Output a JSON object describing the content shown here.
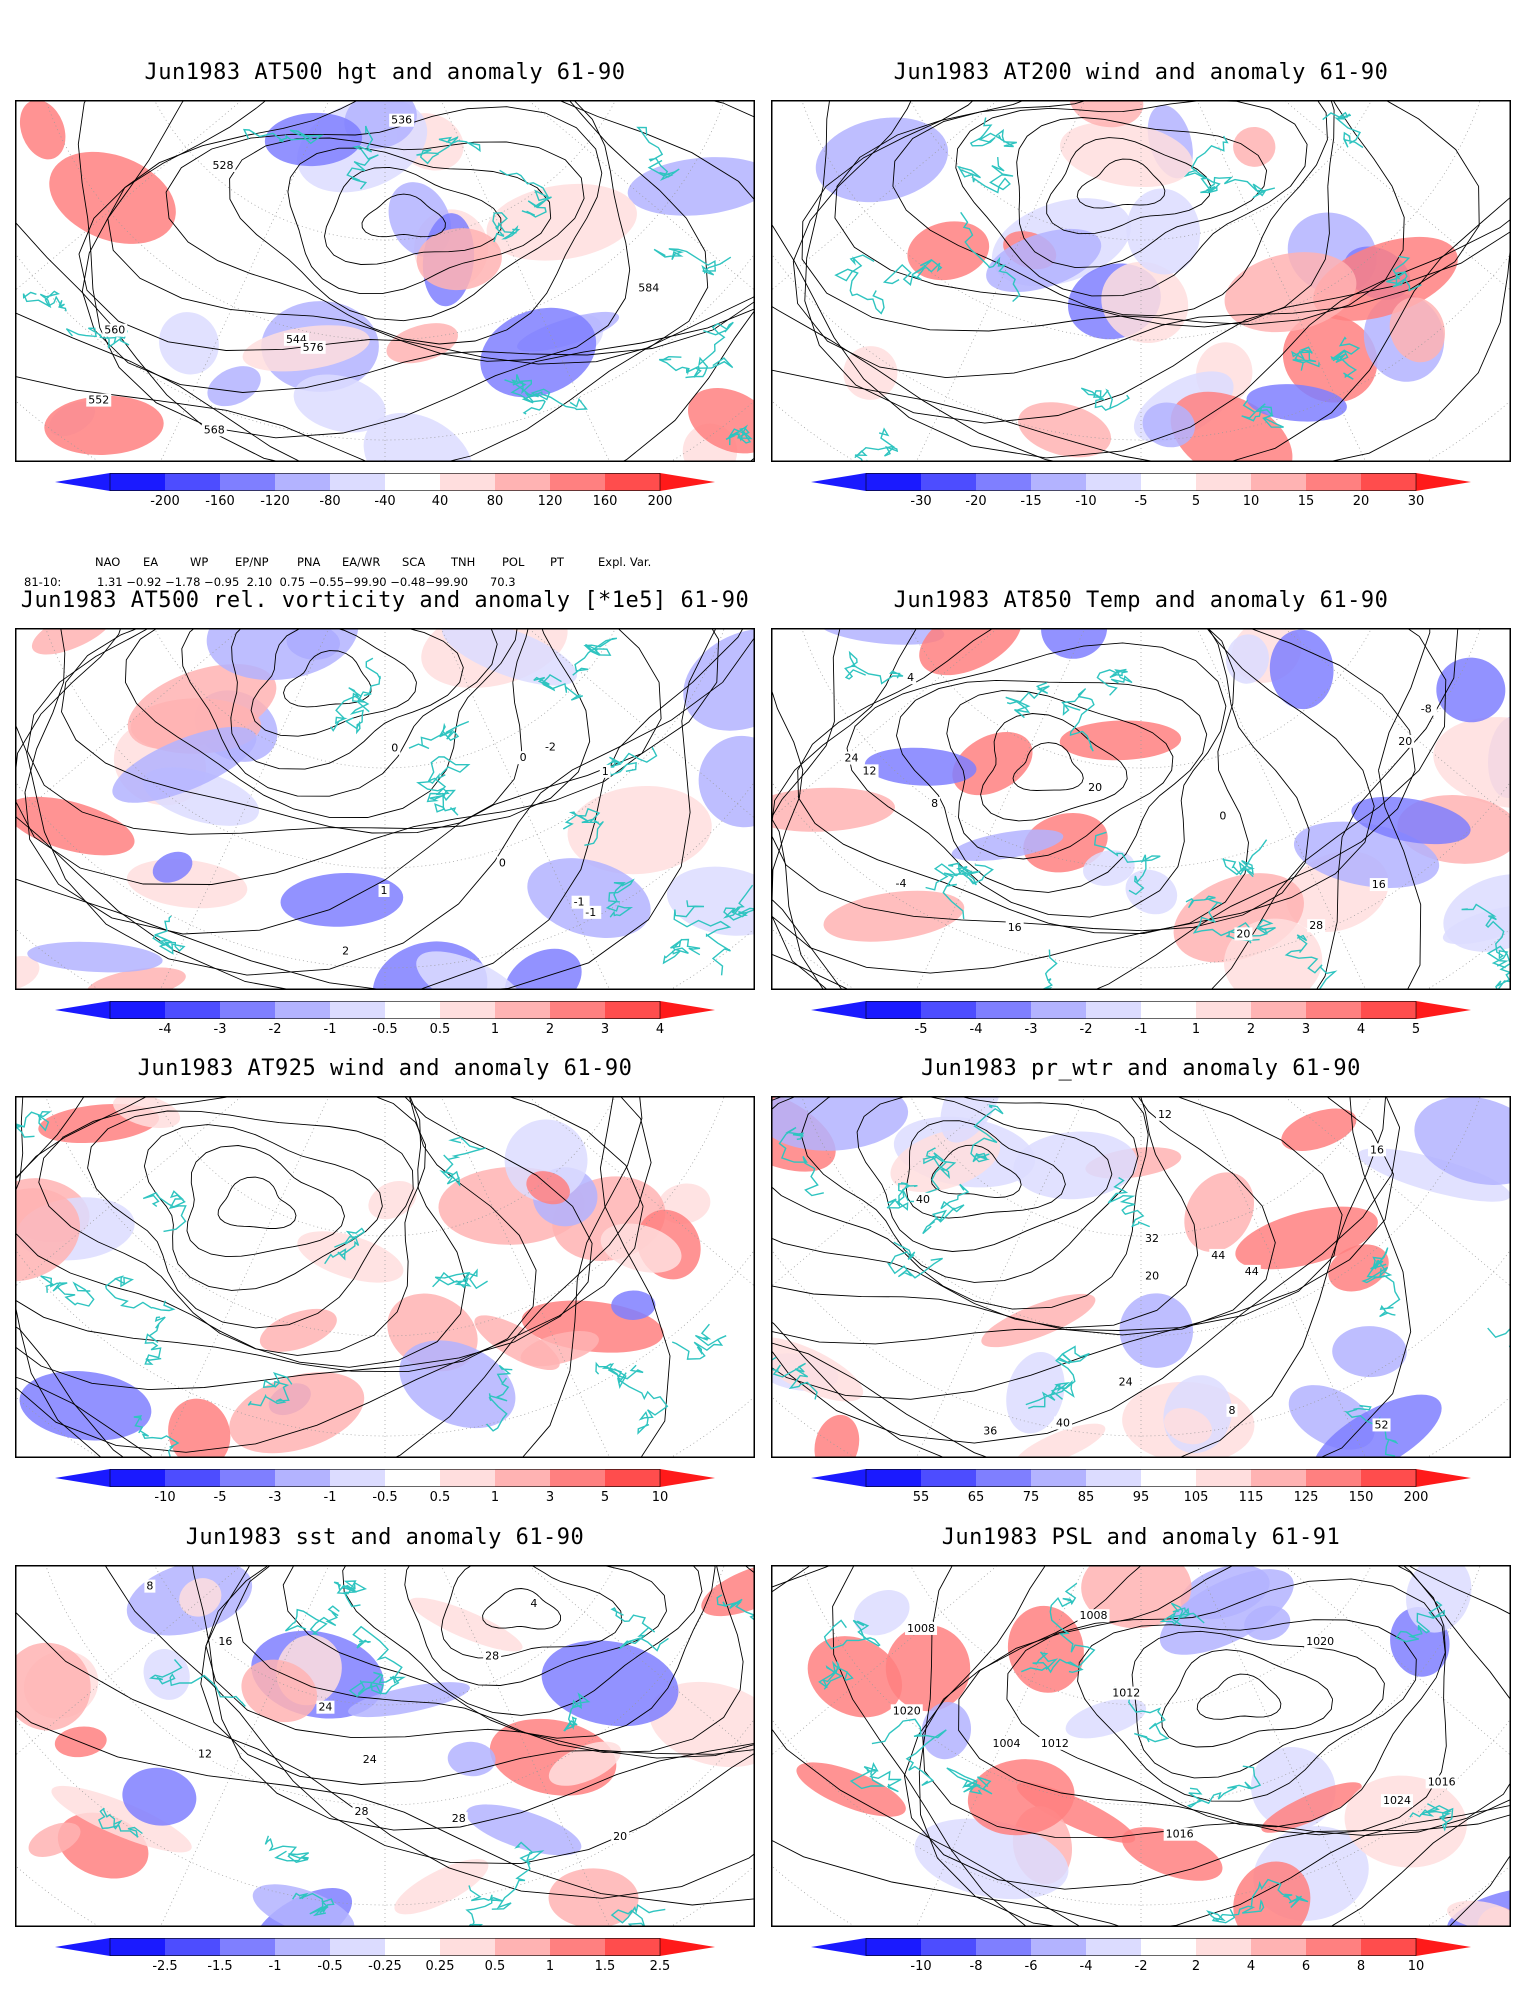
{
  "panels": [
    {
      "title": "Jun1983 AT500 hgt and anomaly 61-90",
      "ticks": [
        "-200",
        "-160",
        "-120",
        "-80",
        "-40",
        "40",
        "80",
        "120",
        "160",
        "200"
      ],
      "contour_labels": [
        "528",
        "536",
        "544",
        "552",
        "560",
        "568",
        "576",
        "584"
      ]
    },
    {
      "title": "Jun1983 AT200 wind and anomaly 61-90",
      "ticks": [
        "-30",
        "-20",
        "-15",
        "-10",
        "-5",
        "5",
        "10",
        "15",
        "20",
        "30"
      ],
      "contour_labels": []
    },
    {
      "title": "Jun1983 AT500 rel. vorticity and anomaly [*1e5] 61-90",
      "ticks": [
        "-4",
        "-3",
        "-2",
        "-1",
        "-0.5",
        "0.5",
        "1",
        "2",
        "3",
        "4"
      ],
      "contour_labels": [
        "0",
        "-1",
        "1",
        "-2",
        "2",
        "0",
        "-1",
        "1",
        "0"
      ]
    },
    {
      "title": "Jun1983 AT850 Temp and anomaly 61-90",
      "ticks": [
        "-5",
        "-4",
        "-3",
        "-2",
        "-1",
        "1",
        "2",
        "3",
        "4",
        "5"
      ],
      "contour_labels": [
        "20",
        "-8",
        "-4",
        "0",
        "4",
        "8",
        "12",
        "16",
        "20",
        "24",
        "28",
        "20",
        "16"
      ]
    },
    {
      "title": "Jun1983 AT925 wind and anomaly 61-90",
      "ticks": [
        "-10",
        "-5",
        "-3",
        "-1",
        "-0.5",
        "0.5",
        "1",
        "3",
        "5",
        "10"
      ],
      "contour_labels": []
    },
    {
      "title": "Jun1983 pr_wtr and anomaly 61-90",
      "ticks": [
        "55",
        "65",
        "75",
        "85",
        "95",
        "105",
        "115",
        "125",
        "150",
        "200"
      ],
      "contour_labels": [
        "52",
        "36",
        "44",
        "40",
        "32",
        "24",
        "20",
        "16",
        "12",
        "8",
        "44",
        "40"
      ]
    },
    {
      "title": "Jun1983 sst and anomaly 61-90",
      "ticks": [
        "-2.5",
        "-1.5",
        "-1",
        "-0.5",
        "-0.25",
        "0.25",
        "0.5",
        "1",
        "1.5",
        "2.5"
      ],
      "contour_labels": [
        "28",
        "24",
        "20",
        "16",
        "12",
        "8",
        "4",
        "28",
        "24",
        "28"
      ]
    },
    {
      "title": "Jun1983 PSL and anomaly 61-91",
      "ticks": [
        "-10",
        "-8",
        "-6",
        "-4",
        "-2",
        "2",
        "4",
        "6",
        "8",
        "10"
      ],
      "contour_labels": [
        "1012",
        "1016",
        "1008",
        "1020",
        "1024",
        "1020",
        "1016",
        "1012",
        "1008",
        "1004"
      ]
    }
  ],
  "indices": {
    "names": [
      "NAO",
      "EA",
      "WP",
      "EP/NP",
      "PNA",
      "EA/WR",
      "SCA",
      "TNH",
      "POL",
      "PT",
      "Expl. Var."
    ],
    "row_label": "81-10:",
    "values": "1.31 −0.92 −1.78 −0.95  2.10  0.75 −0.55−99.90 −0.48−99.90      70.3"
  },
  "colors": {
    "land_outline": "#2fc4c0",
    "blue_scale": [
      "#1a1aff",
      "#4d4dff",
      "#7f7fff",
      "#b3b3ff",
      "#dcdcff"
    ],
    "red_scale": [
      "#ffdede",
      "#ffb3b3",
      "#ff8080",
      "#ff4d4d",
      "#ff1a1a"
    ]
  }
}
